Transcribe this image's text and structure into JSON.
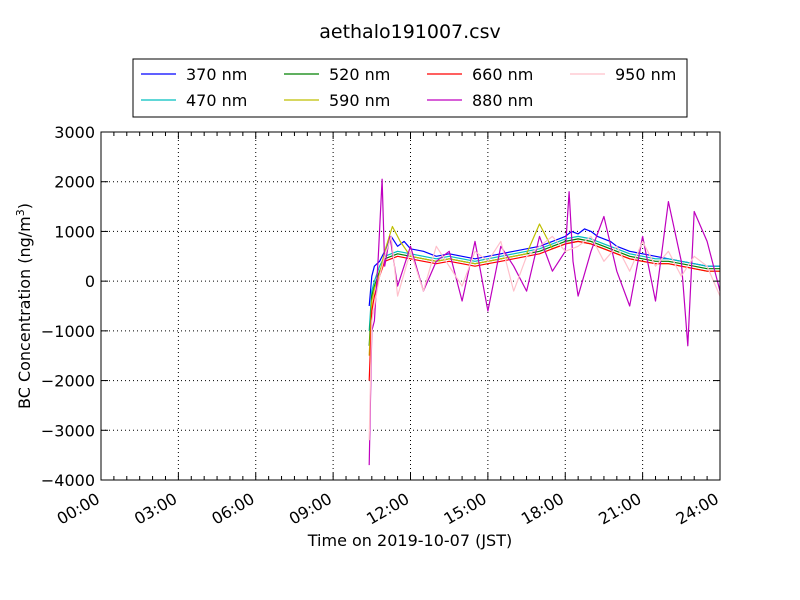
{
  "chart_data": {
    "type": "line",
    "title": "aethalo191007.csv",
    "xlabel": "Time on 2019-10-07 (JST)",
    "ylabel_main": "BC Concentration (ng/m",
    "ylabel_sup": "3",
    "ylabel_close": ")",
    "x_unit": "hours",
    "xlim": [
      0,
      24
    ],
    "ylim": [
      -4000,
      3000
    ],
    "x_ticks": [
      0,
      3,
      6,
      9,
      12,
      15,
      18,
      21,
      24
    ],
    "x_tick_labels": [
      "00:00",
      "03:00",
      "06:00",
      "09:00",
      "12:00",
      "15:00",
      "18:00",
      "21:00",
      "24:00"
    ],
    "y_ticks": [
      -4000,
      -3000,
      -2000,
      -1000,
      0,
      1000,
      2000,
      3000
    ],
    "y_tick_labels": [
      "−4000",
      "−3000",
      "−2000",
      "−1000",
      "0",
      "1000",
      "2000",
      "3000"
    ],
    "grid": true,
    "legend_position": "top-center",
    "series": [
      {
        "name": "370 nm",
        "color": "#0000ff",
        "x": [
          10.4,
          10.5,
          10.6,
          10.8,
          11.0,
          11.25,
          11.5,
          11.75,
          12.0,
          12.5,
          13.0,
          13.5,
          14.0,
          14.5,
          15.0,
          15.5,
          16.0,
          16.5,
          17.0,
          17.5,
          18.0,
          18.25,
          18.5,
          18.75,
          19.0,
          19.25,
          19.5,
          19.75,
          20.0,
          20.5,
          21.0,
          21.5,
          22.0,
          22.5,
          23.0,
          23.5,
          24.0
        ],
        "y": [
          -500,
          100,
          300,
          400,
          600,
          900,
          700,
          800,
          650,
          600,
          500,
          550,
          500,
          450,
          500,
          550,
          600,
          650,
          700,
          800,
          900,
          1000,
          950,
          1050,
          1000,
          900,
          850,
          800,
          700,
          600,
          550,
          500,
          450,
          400,
          350,
          300,
          300
        ]
      },
      {
        "name": "470 nm",
        "color": "#00bfbf",
        "x": [
          10.4,
          10.5,
          10.6,
          10.8,
          11.0,
          11.5,
          12.0,
          12.5,
          13.0,
          13.5,
          14.0,
          14.5,
          15.0,
          15.5,
          16.0,
          16.5,
          17.0,
          17.5,
          18.0,
          18.5,
          19.0,
          19.5,
          20.0,
          20.5,
          21.0,
          21.5,
          22.0,
          22.5,
          23.0,
          23.5,
          24.0
        ],
        "y": [
          -1000,
          -200,
          0,
          300,
          500,
          600,
          550,
          500,
          450,
          500,
          450,
          400,
          450,
          500,
          550,
          600,
          650,
          750,
          850,
          900,
          850,
          750,
          650,
          550,
          500,
          450,
          450,
          400,
          350,
          300,
          300
        ]
      },
      {
        "name": "520 nm",
        "color": "#008000",
        "x": [
          10.4,
          10.5,
          10.6,
          10.8,
          11.0,
          11.5,
          12.0,
          12.5,
          13.0,
          13.5,
          14.0,
          14.5,
          15.0,
          15.5,
          16.0,
          16.5,
          17.0,
          17.5,
          18.0,
          18.5,
          19.0,
          19.5,
          20.0,
          20.5,
          21.0,
          21.5,
          22.0,
          22.5,
          23.0,
          23.5,
          24.0
        ],
        "y": [
          -1300,
          -300,
          -100,
          200,
          450,
          550,
          500,
          450,
          400,
          450,
          400,
          350,
          400,
          450,
          500,
          550,
          600,
          700,
          800,
          850,
          800,
          700,
          600,
          500,
          450,
          400,
          400,
          350,
          300,
          250,
          250
        ]
      },
      {
        "name": "590 nm",
        "color": "#bfbf00",
        "x": [
          10.4,
          10.5,
          10.6,
          10.8,
          11.0,
          11.3,
          11.6,
          12.0,
          12.5,
          13.0,
          13.5,
          14.0,
          14.5,
          15.0,
          15.5,
          16.0,
          16.5,
          17.0,
          17.5,
          18.0,
          18.5,
          19.0,
          19.5,
          20.0,
          20.5,
          21.0,
          21.5,
          22.0,
          22.5,
          23.0,
          23.5,
          24.0
        ],
        "y": [
          -1500,
          -400,
          -150,
          150,
          600,
          1100,
          800,
          500,
          450,
          400,
          450,
          400,
          350,
          400,
          450,
          500,
          550,
          1150,
          650,
          750,
          800,
          750,
          650,
          550,
          450,
          400,
          350,
          350,
          300,
          250,
          200,
          200
        ]
      },
      {
        "name": "660 nm",
        "color": "#ff0000",
        "x": [
          10.4,
          10.5,
          10.6,
          10.8,
          11.0,
          11.5,
          12.0,
          12.5,
          13.0,
          13.5,
          14.0,
          14.5,
          15.0,
          15.5,
          16.0,
          16.5,
          17.0,
          17.5,
          18.0,
          18.5,
          19.0,
          19.5,
          20.0,
          20.5,
          21.0,
          21.5,
          22.0,
          22.5,
          23.0,
          23.5,
          24.0
        ],
        "y": [
          -2000,
          -600,
          -300,
          100,
          400,
          500,
          450,
          400,
          350,
          400,
          350,
          300,
          350,
          400,
          450,
          500,
          550,
          650,
          750,
          800,
          750,
          650,
          550,
          450,
          400,
          350,
          350,
          300,
          250,
          200,
          200
        ]
      },
      {
        "name": "880 nm",
        "color": "#bf00bf",
        "x": [
          10.4,
          10.5,
          10.6,
          10.75,
          10.9,
          11.0,
          11.2,
          11.5,
          12.0,
          12.5,
          13.0,
          13.5,
          14.0,
          14.5,
          15.0,
          15.5,
          16.0,
          16.5,
          17.0,
          17.5,
          18.0,
          18.15,
          18.3,
          18.5,
          19.0,
          19.5,
          20.0,
          20.5,
          21.0,
          21.5,
          22.0,
          22.5,
          22.75,
          23.0,
          23.5,
          24.0
        ],
        "y": [
          -3700,
          -1000,
          -800,
          500,
          2050,
          300,
          900,
          -100,
          700,
          -200,
          400,
          600,
          -400,
          800,
          -600,
          700,
          300,
          -200,
          900,
          200,
          600,
          1800,
          400,
          -300,
          600,
          1300,
          200,
          -500,
          900,
          -400,
          1600,
          400,
          -1300,
          1400,
          800,
          -200
        ]
      },
      {
        "name": "950 nm",
        "color": "#ffc0cb",
        "x": [
          10.4,
          10.5,
          10.6,
          10.8,
          11.0,
          11.25,
          11.5,
          12.0,
          12.5,
          13.0,
          13.5,
          14.0,
          14.5,
          15.0,
          15.5,
          16.0,
          16.5,
          17.0,
          17.5,
          18.0,
          18.5,
          19.0,
          19.5,
          20.0,
          20.5,
          21.0,
          21.5,
          22.0,
          22.5,
          23.0,
          23.5,
          24.0
        ],
        "y": [
          -3200,
          -800,
          -500,
          100,
          500,
          900,
          -300,
          600,
          -200,
          700,
          300,
          -100,
          600,
          400,
          800,
          -200,
          500,
          700,
          900,
          600,
          700,
          900,
          400,
          700,
          200,
          800,
          300,
          600,
          100,
          500,
          300,
          -300
        ]
      }
    ]
  }
}
